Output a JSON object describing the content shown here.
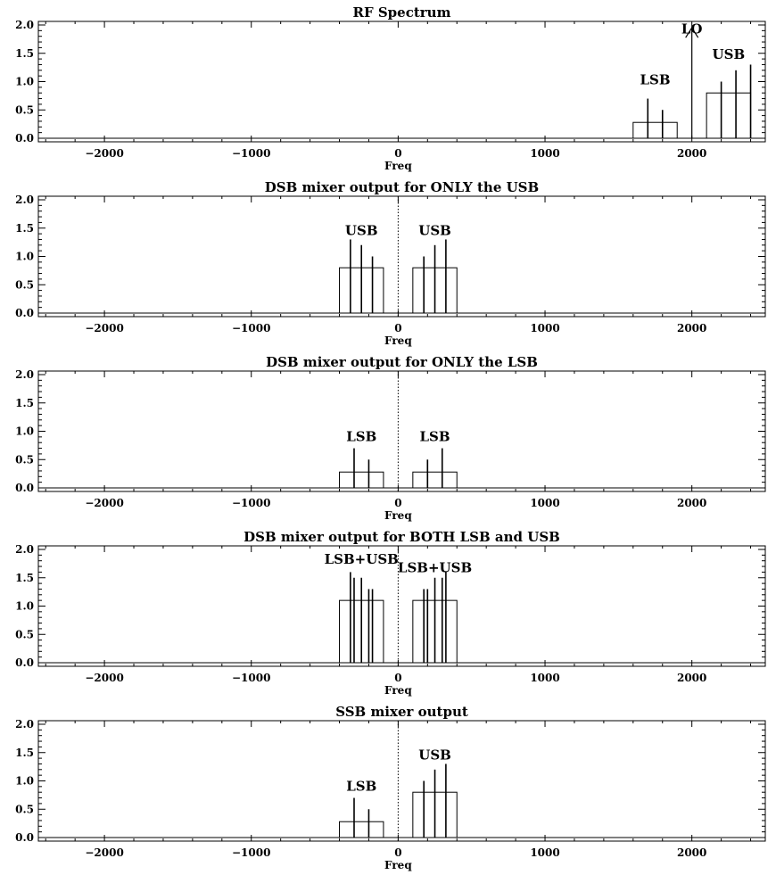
{
  "figure": {
    "xaxis_label": "Freq",
    "xlim": [
      -2450,
      2500
    ],
    "ylim": [
      0,
      2.0
    ],
    "xticks": [
      -2000,
      -1000,
      0,
      1000,
      2000
    ],
    "yticks": [
      0.0,
      0.5,
      1.0,
      1.5,
      2.0
    ],
    "tick_direction": "in",
    "center_line": "dotted vertical line at x = 0"
  },
  "chart_data": [
    {
      "type": "bar",
      "title": "RF Spectrum",
      "xlabel": "Freq",
      "xlim": [
        -2450,
        2500
      ],
      "ylim": [
        0,
        2.0
      ],
      "zero_line": false,
      "boxes": [
        {
          "x0": 1600,
          "x1": 1900,
          "height": 0.28
        },
        {
          "x0": 2100,
          "x1": 2400,
          "height": 0.8
        }
      ],
      "spikes": [
        {
          "x": 1700,
          "height": 0.7
        },
        {
          "x": 1800,
          "height": 0.5
        },
        {
          "x": 2200,
          "height": 1.0
        },
        {
          "x": 2300,
          "height": 1.2
        },
        {
          "x": 2400,
          "height": 1.3
        }
      ],
      "arrows": [
        {
          "x": 2000,
          "height": 1.95
        }
      ],
      "labels": [
        {
          "text": "LSB",
          "x": 1750,
          "y": 0.95
        },
        {
          "text": "LO",
          "x": 2000,
          "y": 1.85
        },
        {
          "text": "USB",
          "x": 2250,
          "y": 1.4
        }
      ]
    },
    {
      "type": "bar",
      "title": "DSB mixer output for ONLY the USB",
      "xlabel": "Freq",
      "xlim": [
        -2450,
        2500
      ],
      "ylim": [
        0,
        2.0
      ],
      "zero_line": true,
      "boxes": [
        {
          "x0": -400,
          "x1": -100,
          "height": 0.8
        },
        {
          "x0": 100,
          "x1": 400,
          "height": 0.8
        }
      ],
      "spikes": [
        {
          "x": -325,
          "height": 1.3
        },
        {
          "x": -250,
          "height": 1.2
        },
        {
          "x": -175,
          "height": 1.0
        },
        {
          "x": 175,
          "height": 1.0
        },
        {
          "x": 250,
          "height": 1.2
        },
        {
          "x": 325,
          "height": 1.3
        }
      ],
      "arrows": [],
      "labels": [
        {
          "text": "USB",
          "x": -250,
          "y": 1.38
        },
        {
          "text": "USB",
          "x": 250,
          "y": 1.38
        }
      ]
    },
    {
      "type": "bar",
      "title": "DSB mixer output for ONLY the LSB",
      "xlabel": "Freq",
      "xlim": [
        -2450,
        2500
      ],
      "ylim": [
        0,
        2.0
      ],
      "zero_line": true,
      "boxes": [
        {
          "x0": -400,
          "x1": -100,
          "height": 0.28
        },
        {
          "x0": 100,
          "x1": 400,
          "height": 0.28
        }
      ],
      "spikes": [
        {
          "x": -300,
          "height": 0.7
        },
        {
          "x": -200,
          "height": 0.5
        },
        {
          "x": 200,
          "height": 0.5
        },
        {
          "x": 300,
          "height": 0.7
        }
      ],
      "arrows": [],
      "labels": [
        {
          "text": "LSB",
          "x": -250,
          "y": 0.83
        },
        {
          "text": "LSB",
          "x": 250,
          "y": 0.83
        }
      ]
    },
    {
      "type": "bar",
      "title": "DSB mixer output for BOTH LSB and USB",
      "xlabel": "Freq",
      "xlim": [
        -2450,
        2500
      ],
      "ylim": [
        0,
        2.0
      ],
      "zero_line": true,
      "boxes": [
        {
          "x0": -400,
          "x1": -100,
          "height": 1.1
        },
        {
          "x0": 100,
          "x1": 400,
          "height": 1.1
        }
      ],
      "spikes": [
        {
          "x": -325,
          "height": 1.6
        },
        {
          "x": -300,
          "height": 1.5
        },
        {
          "x": -250,
          "height": 1.5
        },
        {
          "x": -200,
          "height": 1.3
        },
        {
          "x": -175,
          "height": 1.3
        },
        {
          "x": 175,
          "height": 1.3
        },
        {
          "x": 200,
          "height": 1.3
        },
        {
          "x": 250,
          "height": 1.5
        },
        {
          "x": 300,
          "height": 1.5
        },
        {
          "x": 325,
          "height": 1.6
        }
      ],
      "arrows": [],
      "labels": [
        {
          "text": "LSB+USB",
          "x": -250,
          "y": 1.75
        },
        {
          "text": "LSB+USB",
          "x": 250,
          "y": 1.6
        }
      ]
    },
    {
      "type": "bar",
      "title": "SSB mixer output",
      "xlabel": "Freq",
      "xlim": [
        -2450,
        2500
      ],
      "ylim": [
        0,
        2.0
      ],
      "zero_line": true,
      "boxes": [
        {
          "x0": -400,
          "x1": -100,
          "height": 0.28
        },
        {
          "x0": 100,
          "x1": 400,
          "height": 0.8
        }
      ],
      "spikes": [
        {
          "x": -300,
          "height": 0.7
        },
        {
          "x": -200,
          "height": 0.5
        },
        {
          "x": 175,
          "height": 1.0
        },
        {
          "x": 250,
          "height": 1.2
        },
        {
          "x": 325,
          "height": 1.3
        }
      ],
      "arrows": [],
      "labels": [
        {
          "text": "LSB",
          "x": -250,
          "y": 0.83
        },
        {
          "text": "USB",
          "x": 250,
          "y": 1.38
        }
      ]
    }
  ]
}
